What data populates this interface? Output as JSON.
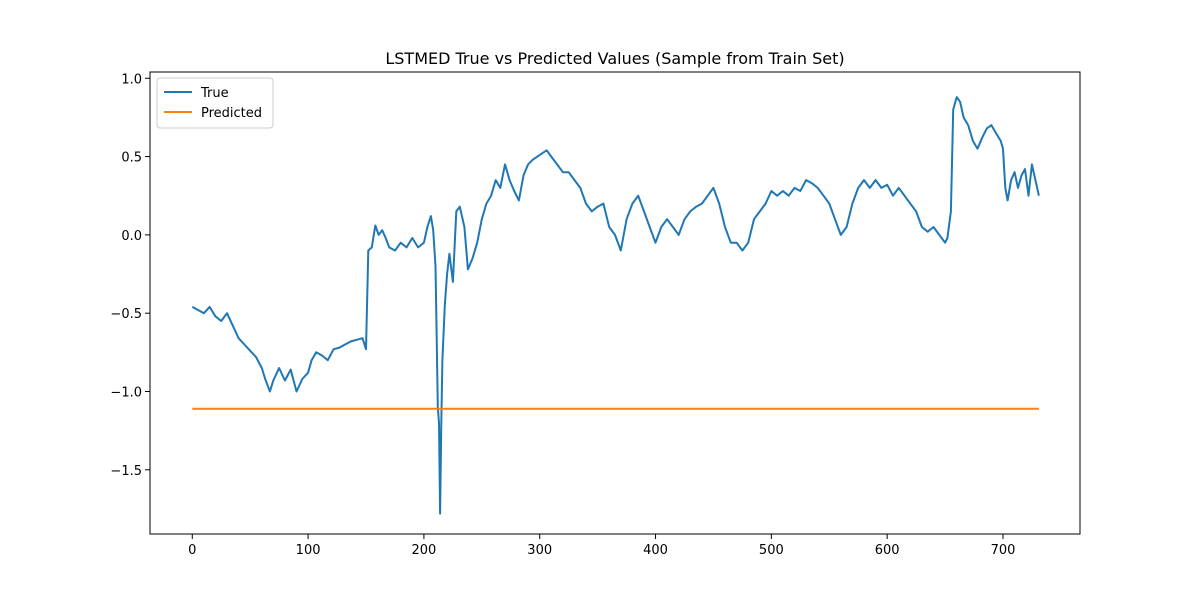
{
  "chart_data": {
    "type": "line",
    "title": "LSTMED True vs Predicted Values (Sample from Train Set)",
    "xlabel": "",
    "ylabel": "",
    "xlim": [
      -36.5,
      766.5
    ],
    "ylim": [
      -1.91,
      1.04
    ],
    "x_ticks": [
      0,
      100,
      200,
      300,
      400,
      500,
      600,
      700
    ],
    "y_ticks": [
      -1.5,
      -1.0,
      -0.5,
      0.0,
      0.5,
      1.0
    ],
    "legend": {
      "position": "top-left",
      "entries": [
        "True",
        "Predicted"
      ]
    },
    "grid": false,
    "series": [
      {
        "name": "True",
        "color": "#1f77b4",
        "points": [
          [
            0,
            -0.46
          ],
          [
            5,
            -0.48
          ],
          [
            10,
            -0.5
          ],
          [
            15,
            -0.46
          ],
          [
            20,
            -0.52
          ],
          [
            25,
            -0.55
          ],
          [
            30,
            -0.5
          ],
          [
            35,
            -0.58
          ],
          [
            40,
            -0.66
          ],
          [
            45,
            -0.7
          ],
          [
            50,
            -0.74
          ],
          [
            55,
            -0.78
          ],
          [
            60,
            -0.85
          ],
          [
            63,
            -0.92
          ],
          [
            67,
            -1.0
          ],
          [
            70,
            -0.93
          ],
          [
            75,
            -0.85
          ],
          [
            80,
            -0.93
          ],
          [
            85,
            -0.86
          ],
          [
            90,
            -1.0
          ],
          [
            95,
            -0.92
          ],
          [
            100,
            -0.88
          ],
          [
            103,
            -0.8
          ],
          [
            107,
            -0.75
          ],
          [
            112,
            -0.77
          ],
          [
            117,
            -0.8
          ],
          [
            122,
            -0.73
          ],
          [
            127,
            -0.72
          ],
          [
            132,
            -0.7
          ],
          [
            137,
            -0.68
          ],
          [
            142,
            -0.67
          ],
          [
            147,
            -0.66
          ],
          [
            150,
            -0.73
          ],
          [
            152,
            -0.1
          ],
          [
            155,
            -0.08
          ],
          [
            158,
            0.06
          ],
          [
            161,
            0.0
          ],
          [
            164,
            0.03
          ],
          [
            167,
            -0.02
          ],
          [
            170,
            -0.08
          ],
          [
            175,
            -0.1
          ],
          [
            180,
            -0.05
          ],
          [
            185,
            -0.08
          ],
          [
            190,
            -0.02
          ],
          [
            195,
            -0.08
          ],
          [
            200,
            -0.05
          ],
          [
            203,
            0.05
          ],
          [
            206,
            0.12
          ],
          [
            208,
            0.03
          ],
          [
            210,
            -0.2
          ],
          [
            211,
            -0.62
          ],
          [
            212,
            -1.1
          ],
          [
            213,
            -1.2
          ],
          [
            214,
            -1.78
          ],
          [
            215,
            -1.2
          ],
          [
            216,
            -0.8
          ],
          [
            218,
            -0.45
          ],
          [
            220,
            -0.25
          ],
          [
            222,
            -0.12
          ],
          [
            225,
            -0.3
          ],
          [
            228,
            0.15
          ],
          [
            231,
            0.18
          ],
          [
            235,
            0.05
          ],
          [
            238,
            -0.22
          ],
          [
            242,
            -0.15
          ],
          [
            246,
            -0.05
          ],
          [
            250,
            0.1
          ],
          [
            254,
            0.2
          ],
          [
            258,
            0.25
          ],
          [
            262,
            0.35
          ],
          [
            266,
            0.3
          ],
          [
            270,
            0.45
          ],
          [
            274,
            0.35
          ],
          [
            278,
            0.28
          ],
          [
            282,
            0.22
          ],
          [
            286,
            0.38
          ],
          [
            290,
            0.45
          ],
          [
            294,
            0.48
          ],
          [
            298,
            0.5
          ],
          [
            302,
            0.52
          ],
          [
            306,
            0.54
          ],
          [
            310,
            0.5
          ],
          [
            315,
            0.45
          ],
          [
            320,
            0.4
          ],
          [
            325,
            0.4
          ],
          [
            330,
            0.35
          ],
          [
            335,
            0.3
          ],
          [
            340,
            0.2
          ],
          [
            345,
            0.15
          ],
          [
            350,
            0.18
          ],
          [
            355,
            0.2
          ],
          [
            360,
            0.05
          ],
          [
            365,
            0.0
          ],
          [
            370,
            -0.1
          ],
          [
            375,
            0.1
          ],
          [
            380,
            0.2
          ],
          [
            385,
            0.25
          ],
          [
            390,
            0.15
          ],
          [
            395,
            0.05
          ],
          [
            400,
            -0.05
          ],
          [
            405,
            0.05
          ],
          [
            410,
            0.1
          ],
          [
            415,
            0.05
          ],
          [
            420,
            0.0
          ],
          [
            425,
            0.1
          ],
          [
            430,
            0.15
          ],
          [
            435,
            0.18
          ],
          [
            440,
            0.2
          ],
          [
            445,
            0.25
          ],
          [
            450,
            0.3
          ],
          [
            455,
            0.2
          ],
          [
            460,
            0.05
          ],
          [
            465,
            -0.05
          ],
          [
            470,
            -0.05
          ],
          [
            475,
            -0.1
          ],
          [
            480,
            -0.05
          ],
          [
            485,
            0.1
          ],
          [
            490,
            0.15
          ],
          [
            495,
            0.2
          ],
          [
            500,
            0.28
          ],
          [
            505,
            0.25
          ],
          [
            510,
            0.28
          ],
          [
            515,
            0.25
          ],
          [
            520,
            0.3
          ],
          [
            525,
            0.28
          ],
          [
            530,
            0.35
          ],
          [
            535,
            0.33
          ],
          [
            540,
            0.3
          ],
          [
            545,
            0.25
          ],
          [
            550,
            0.2
          ],
          [
            555,
            0.1
          ],
          [
            560,
            0.0
          ],
          [
            565,
            0.05
          ],
          [
            570,
            0.2
          ],
          [
            575,
            0.3
          ],
          [
            580,
            0.35
          ],
          [
            585,
            0.3
          ],
          [
            590,
            0.35
          ],
          [
            595,
            0.3
          ],
          [
            600,
            0.32
          ],
          [
            605,
            0.25
          ],
          [
            610,
            0.3
          ],
          [
            615,
            0.25
          ],
          [
            620,
            0.2
          ],
          [
            625,
            0.15
          ],
          [
            630,
            0.05
          ],
          [
            635,
            0.02
          ],
          [
            640,
            0.05
          ],
          [
            645,
            0.0
          ],
          [
            650,
            -0.05
          ],
          [
            652,
            -0.02
          ],
          [
            655,
            0.15
          ],
          [
            657,
            0.8
          ],
          [
            660,
            0.88
          ],
          [
            663,
            0.85
          ],
          [
            666,
            0.75
          ],
          [
            670,
            0.7
          ],
          [
            674,
            0.6
          ],
          [
            678,
            0.55
          ],
          [
            682,
            0.62
          ],
          [
            686,
            0.68
          ],
          [
            690,
            0.7
          ],
          [
            694,
            0.65
          ],
          [
            698,
            0.6
          ],
          [
            700,
            0.55
          ],
          [
            702,
            0.3
          ],
          [
            704,
            0.22
          ],
          [
            707,
            0.35
          ],
          [
            710,
            0.4
          ],
          [
            713,
            0.3
          ],
          [
            716,
            0.38
          ],
          [
            719,
            0.42
          ],
          [
            722,
            0.25
          ],
          [
            725,
            0.45
          ],
          [
            728,
            0.35
          ],
          [
            731,
            0.25
          ]
        ]
      },
      {
        "name": "Predicted",
        "color": "#ff7f0e",
        "points": [
          [
            0,
            -1.11
          ],
          [
            731,
            -1.11
          ]
        ]
      }
    ]
  }
}
